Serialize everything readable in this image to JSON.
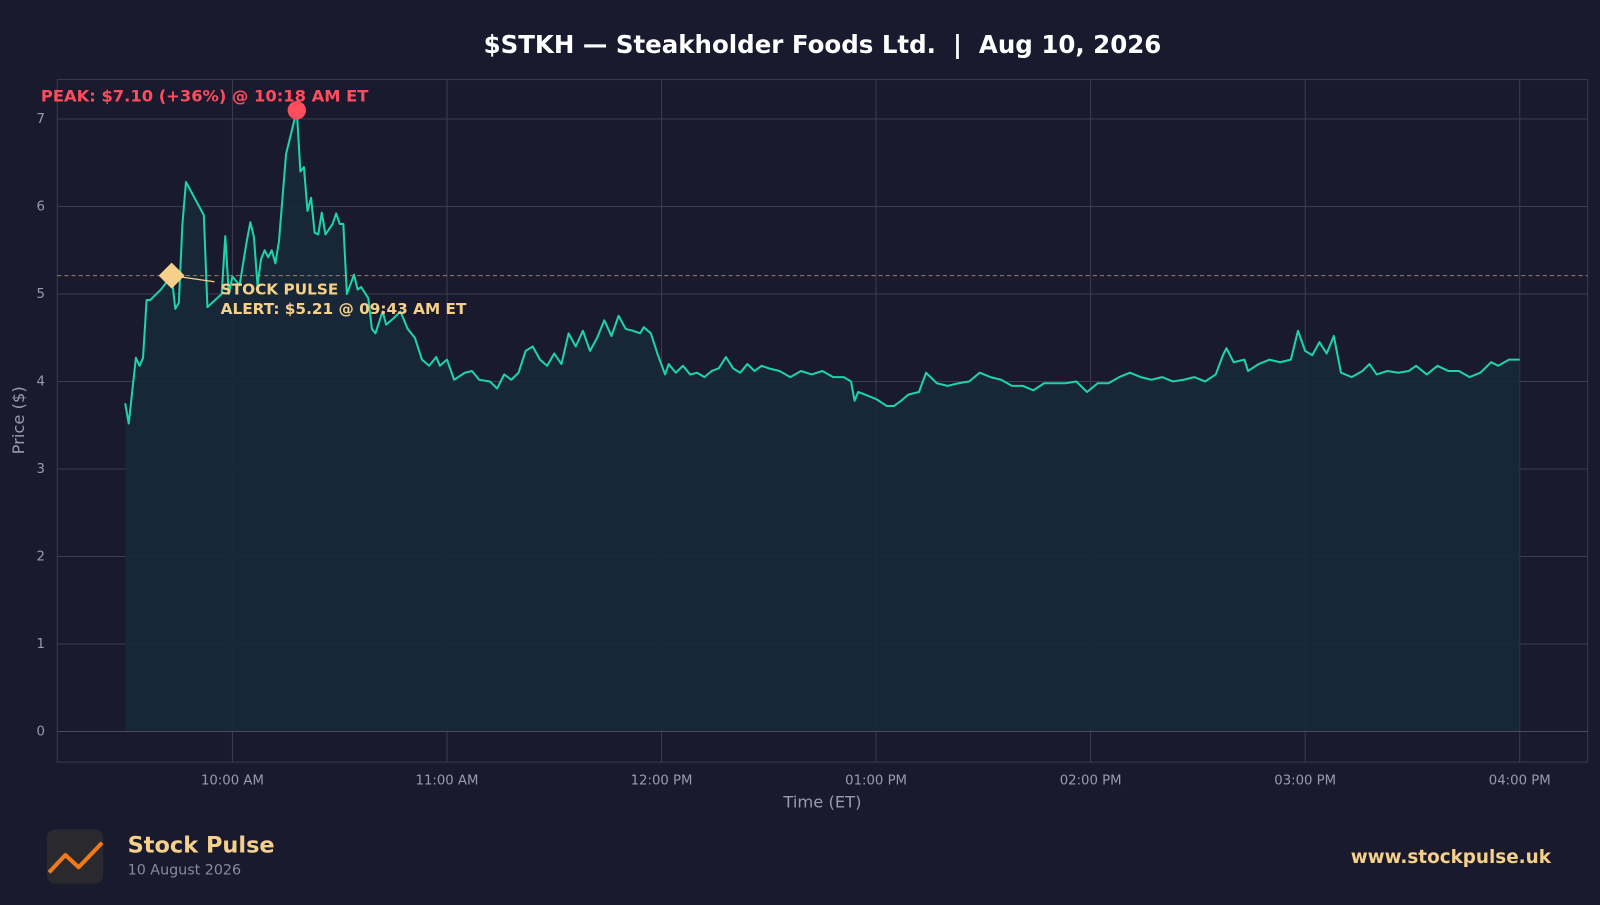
{
  "chart_data": {
    "type": "area-line",
    "title": "$STKH — Steakholder Foods Ltd.  |  Aug 10, 2026",
    "x_label": "Time (ET)",
    "y_label": "Price ($)",
    "color": "#1dd3a7",
    "fill": "#17293a",
    "grid": true,
    "x": [
      "09:30 AM",
      "09:31 AM",
      "09:33 AM",
      "09:34 AM",
      "09:35 AM",
      "09:36 AM",
      "09:37 AM",
      "09:40 AM",
      "09:43 AM",
      "09:44 AM",
      "09:45 AM",
      "09:46 AM",
      "09:47 AM",
      "09:52 AM",
      "09:53 AM",
      "09:57 AM",
      "09:58 AM",
      "09:59 AM",
      "10:00 AM",
      "10:02 AM",
      "10:04 AM",
      "10:05 AM",
      "10:06 AM",
      "10:07 AM",
      "10:08 AM",
      "10:09 AM",
      "10:10 AM",
      "10:11 AM",
      "10:12 AM",
      "10:13 AM",
      "10:15 AM",
      "10:18 AM",
      "10:19 AM",
      "10:20 AM",
      "10:21 AM",
      "10:22 AM",
      "10:23 AM",
      "10:24 AM",
      "10:25 AM",
      "10:26 AM",
      "10:28 AM",
      "10:29 AM",
      "10:30 AM",
      "10:31 AM",
      "10:32 AM",
      "10:34 AM",
      "10:35 AM",
      "10:36 AM",
      "10:38 AM",
      "10:39 AM",
      "10:40 AM",
      "10:42 AM",
      "10:43 AM",
      "10:45 AM",
      "10:47 AM",
      "10:49 AM",
      "10:51 AM",
      "10:53 AM",
      "10:55 AM",
      "10:57 AM",
      "10:58 AM",
      "11:00 AM",
      "11:02 AM",
      "11:05 AM",
      "11:07 AM",
      "11:09 AM",
      "11:12 AM",
      "11:14 AM",
      "11:16 AM",
      "11:18 AM",
      "11:20 AM",
      "11:22 AM",
      "11:24 AM",
      "11:26 AM",
      "11:28 AM",
      "11:30 AM",
      "11:32 AM",
      "11:34 AM",
      "11:36 AM",
      "11:38 AM",
      "11:40 AM",
      "11:42 AM",
      "11:44 AM",
      "11:46 AM",
      "11:48 AM",
      "11:50 AM",
      "11:52 AM",
      "11:54 AM",
      "11:55 AM",
      "11:57 AM",
      "11:59 AM",
      "12:01 PM",
      "12:02 PM",
      "12:04 PM",
      "12:06 PM",
      "12:08 PM",
      "12:10 PM",
      "12:12 PM",
      "12:14 PM",
      "12:16 PM",
      "12:18 PM",
      "12:20 PM",
      "12:22 PM",
      "12:24 PM",
      "12:26 PM",
      "12:28 PM",
      "12:30 PM",
      "12:33 PM",
      "12:36 PM",
      "12:39 PM",
      "12:42 PM",
      "12:45 PM",
      "12:48 PM",
      "12:51 PM",
      "12:53 PM",
      "12:54 PM",
      "12:55 PM",
      "12:57 PM",
      "01:00 PM",
      "01:03 PM",
      "01:05 PM",
      "01:07 PM",
      "01:09 PM",
      "01:12 PM",
      "01:14 PM",
      "01:17 PM",
      "01:20 PM",
      "01:23 PM",
      "01:26 PM",
      "01:29 PM",
      "01:32 PM",
      "01:35 PM",
      "01:38 PM",
      "01:41 PM",
      "01:44 PM",
      "01:47 PM",
      "01:50 PM",
      "01:53 PM",
      "01:56 PM",
      "01:59 PM",
      "02:02 PM",
      "02:05 PM",
      "02:08 PM",
      "02:11 PM",
      "02:14 PM",
      "02:17 PM",
      "02:20 PM",
      "02:23 PM",
      "02:26 PM",
      "02:29 PM",
      "02:32 PM",
      "02:35 PM",
      "02:37 PM",
      "02:38 PM",
      "02:40 PM",
      "02:43 PM",
      "02:44 PM",
      "02:47 PM",
      "02:50 PM",
      "02:53 PM",
      "02:56 PM",
      "02:58 PM",
      "03:00 PM",
      "03:02 PM",
      "03:04 PM",
      "03:06 PM",
      "03:08 PM",
      "03:10 PM",
      "03:13 PM",
      "03:16 PM",
      "03:18 PM",
      "03:20 PM",
      "03:23 PM",
      "03:26 PM",
      "03:29 PM",
      "03:31 PM",
      "03:34 PM",
      "03:37 PM",
      "03:40 PM",
      "03:43 PM",
      "03:46 PM",
      "03:49 PM",
      "03:52 PM",
      "03:54 PM",
      "03:57 PM",
      "04:00 PM"
    ],
    "values": [
      3.75,
      3.52,
      4.27,
      4.18,
      4.27,
      4.93,
      4.93,
      5.05,
      5.21,
      4.83,
      4.9,
      5.8,
      6.28,
      5.9,
      4.85,
      5.0,
      5.66,
      5.0,
      5.2,
      5.1,
      5.6,
      5.82,
      5.65,
      5.1,
      5.4,
      5.5,
      5.42,
      5.5,
      5.35,
      5.6,
      6.6,
      7.1,
      6.4,
      6.45,
      5.95,
      6.1,
      5.7,
      5.68,
      5.93,
      5.68,
      5.8,
      5.92,
      5.8,
      5.8,
      5.0,
      5.22,
      5.05,
      5.08,
      4.95,
      4.6,
      4.55,
      4.8,
      4.65,
      4.72,
      4.8,
      4.6,
      4.5,
      4.25,
      4.18,
      4.28,
      4.18,
      4.25,
      4.02,
      4.1,
      4.12,
      4.02,
      4.0,
      3.92,
      4.08,
      4.02,
      4.1,
      4.35,
      4.4,
      4.25,
      4.18,
      4.32,
      4.2,
      4.55,
      4.4,
      4.58,
      4.35,
      4.5,
      4.7,
      4.52,
      4.75,
      4.6,
      4.58,
      4.55,
      4.62,
      4.55,
      4.3,
      4.08,
      4.2,
      4.1,
      4.18,
      4.08,
      4.1,
      4.05,
      4.12,
      4.15,
      4.28,
      4.15,
      4.1,
      4.2,
      4.12,
      4.18,
      4.15,
      4.12,
      4.05,
      4.12,
      4.08,
      4.12,
      4.05,
      4.05,
      4.0,
      3.78,
      3.88,
      3.85,
      3.8,
      3.72,
      3.72,
      3.78,
      3.85,
      3.88,
      4.1,
      3.98,
      3.95,
      3.98,
      4.0,
      4.1,
      4.05,
      4.02,
      3.95,
      3.95,
      3.9,
      3.98,
      3.98,
      3.98,
      4.0,
      3.88,
      3.98,
      3.98,
      4.05,
      4.1,
      4.05,
      4.02,
      4.05,
      4.0,
      4.02,
      4.05,
      4.0,
      4.08,
      4.3,
      4.38,
      4.22,
      4.25,
      4.12,
      4.2,
      4.25,
      4.22,
      4.25,
      4.58,
      4.35,
      4.3,
      4.45,
      4.32,
      4.52,
      4.1,
      4.05,
      4.12,
      4.2,
      4.08,
      4.12,
      4.1,
      4.12,
      4.18,
      4.08,
      4.18,
      4.12,
      4.12,
      4.05,
      4.1,
      4.22,
      4.18,
      4.25,
      4.25
    ],
    "xlim": [
      "09:11 AM",
      "04:19 PM"
    ],
    "xticks": [
      "10:00 AM",
      "11:00 AM",
      "12:00 PM",
      "01:00 PM",
      "02:00 PM",
      "03:00 PM",
      "04:00 PM"
    ],
    "ylim": [
      -0.35,
      7.45
    ],
    "yticks": [
      0,
      1,
      2,
      3,
      4,
      5,
      6,
      7
    ],
    "annotations": {
      "peak": {
        "x": "10:18 AM",
        "y": 7.1,
        "label": "PEAK: $7.10 (+36%) @ 10:18 AM ET",
        "color": "#ff4d5e"
      },
      "alert": {
        "x": "09:43 AM",
        "y": 5.21,
        "label": [
          "STOCK PULSE",
          "ALERT: $5.21 @ 09:43 AM ET"
        ],
        "color": "#f5d08a"
      }
    }
  },
  "footer": {
    "brand": "Stock Pulse",
    "date": "10 August 2026",
    "url": "www.stockpulse.uk"
  }
}
